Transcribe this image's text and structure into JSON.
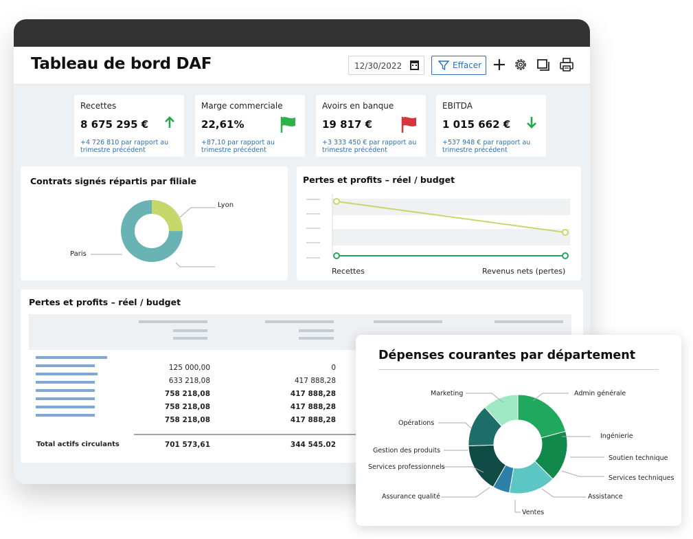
{
  "header": {
    "title": "Tableau de bord DAF",
    "date": "12/30/2022",
    "filter_label": "Effacer"
  },
  "icons": {
    "calendar": "calendar-icon",
    "filter": "filter-icon",
    "add": "plus-icon",
    "settings": "gear-icon",
    "window": "window-icon",
    "print": "printer-icon"
  },
  "kpis": [
    {
      "label": "Recettes",
      "value": "8 675 295 €",
      "delta": "+4 726 810 par rapport au trimestre précédent",
      "indicator": "arrow-up",
      "color": "#22a84a"
    },
    {
      "label": "Marge commerciale",
      "value": "22,61%",
      "delta": "+87,10 par rapport au trimestre précédent",
      "indicator": "flag",
      "color": "#2db34a"
    },
    {
      "label": "Avoirs en banque",
      "value": "19 817 €",
      "delta": "+3 333 450 € par rapport au trimestre précédent",
      "indicator": "flag",
      "color": "#d6353f"
    },
    {
      "label": "EBITDA",
      "value": "1 015 662 €",
      "delta": "+537 948 € par rapport au trimestre précédent",
      "indicator": "arrow-down",
      "color": "#22a84a"
    }
  ],
  "donut_card": {
    "title": "Contrats signés répartis par filiale",
    "labels": [
      "Lyon",
      "Paris"
    ]
  },
  "line_card": {
    "title": "Pertes et profits – réel / budget",
    "x_labels": [
      "Recettes",
      "Revenus nets (pertes)"
    ]
  },
  "table_card": {
    "title": "Pertes et profits – réel / budget",
    "col1": [
      "125 000,00",
      "633 218,08",
      "758 218,08",
      "758 218,08",
      "758 218,08"
    ],
    "col2": [
      "0",
      "417 888,28",
      "417 888,28",
      "417 888,28",
      "417 888,28"
    ],
    "bold_rows": [
      false,
      false,
      true,
      true,
      true
    ],
    "total_label": "Total actifs circulants",
    "total_col1": "701 573,61",
    "total_col2": "344 545.02"
  },
  "dept_card": {
    "title": "Dépenses courantes par département",
    "labels": [
      "Marketing",
      "Admin générale",
      "Opérations",
      "Ingénierie",
      "Gestion des produits",
      "Soutien technique",
      "Services professionnels",
      "Services techniques",
      "Assurance qualité",
      "Assistance",
      "Ventes"
    ]
  },
  "colors": {
    "accent": "#2a6fb7",
    "lime": "#c7d86a",
    "teal": "#6ab3b5",
    "green_line": "#27a35a"
  }
}
